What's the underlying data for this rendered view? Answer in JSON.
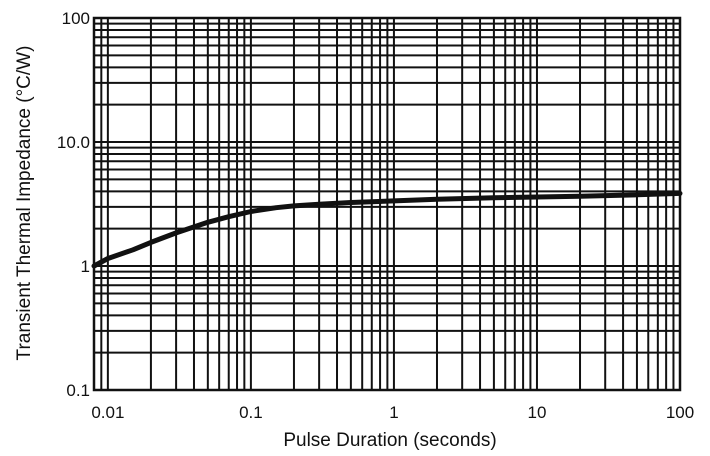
{
  "chart_data": {
    "type": "line",
    "title": "",
    "xlabel": "Pulse Duration (seconds)",
    "ylabel": "Transient Thermal Impedance (°C/W)",
    "x_scale": "log",
    "y_scale": "log",
    "xlim": [
      0.008,
      100
    ],
    "ylim": [
      0.1,
      100
    ],
    "x_ticks": [
      {
        "value": 0.01,
        "label": "0.01"
      },
      {
        "value": 0.1,
        "label": "0.1"
      },
      {
        "value": 1,
        "label": "1"
      },
      {
        "value": 10,
        "label": "10"
      },
      {
        "value": 100,
        "label": "100"
      }
    ],
    "y_ticks": [
      {
        "value": 0.1,
        "label": "0.1"
      },
      {
        "value": 1,
        "label": "1"
      },
      {
        "value": 10,
        "label": "10.0"
      },
      {
        "value": 100,
        "label": "100"
      }
    ],
    "grid": true,
    "legend": "none",
    "series": [
      {
        "x": [
          0.008,
          0.01,
          0.015,
          0.02,
          0.03,
          0.05,
          0.07,
          0.1,
          0.15,
          0.2,
          0.3,
          0.5,
          0.7,
          1,
          2,
          5,
          10,
          20,
          50,
          100
        ],
        "y": [
          1.0,
          1.15,
          1.35,
          1.55,
          1.85,
          2.25,
          2.5,
          2.75,
          2.95,
          3.05,
          3.15,
          3.25,
          3.3,
          3.35,
          3.45,
          3.55,
          3.6,
          3.65,
          3.75,
          3.85
        ]
      }
    ],
    "colors": {
      "line": "#111111",
      "grid": "#111111",
      "background": "#ffffff"
    }
  }
}
